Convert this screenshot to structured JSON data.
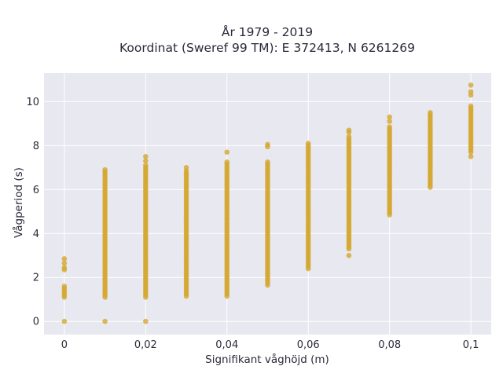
{
  "chart_data": {
    "type": "scatter",
    "title_line1": "År 1979 - 2019",
    "title_line2": "Koordinat (Sweref 99 TM): E 372413, N 6261269",
    "xlabel": "Signifikant våghöjd (m)",
    "ylabel": "Vågperiod (s)",
    "xlim": [
      -0.005,
      0.105
    ],
    "ylim": [
      -0.6,
      11.3
    ],
    "x_ticks": [
      {
        "value": 0,
        "label": "0"
      },
      {
        "value": 0.02,
        "label": "0,02"
      },
      {
        "value": 0.04,
        "label": "0,04"
      },
      {
        "value": 0.06,
        "label": "0,06"
      },
      {
        "value": 0.08,
        "label": "0,08"
      },
      {
        "value": 0.1,
        "label": "0,1"
      }
    ],
    "y_ticks": [
      {
        "value": 0,
        "label": "0"
      },
      {
        "value": 2,
        "label": "2"
      },
      {
        "value": 4,
        "label": "4"
      },
      {
        "value": 6,
        "label": "6"
      },
      {
        "value": 8,
        "label": "8"
      },
      {
        "value": 10,
        "label": "10"
      }
    ],
    "grid": true,
    "marker_color": "#d4a52a",
    "plot_bg": "#e8e8f0",
    "grid_color": "#ffffff",
    "columns": [
      {
        "x": 0,
        "min": 1.1,
        "max": 1.6,
        "outliers": [
          0,
          2.35,
          2.45,
          2.65,
          2.85
        ]
      },
      {
        "x": 0.01,
        "min": 1.1,
        "max": 6.95,
        "outliers": [
          0
        ]
      },
      {
        "x": 0.02,
        "min": 1.1,
        "max": 7.1,
        "outliers": [
          0,
          7.3,
          7.5
        ]
      },
      {
        "x": 0.03,
        "min": 1.15,
        "max": 6.85,
        "outliers": [
          7.0
        ]
      },
      {
        "x": 0.04,
        "min": 1.15,
        "max": 7.25,
        "outliers": [
          7.7
        ]
      },
      {
        "x": 0.05,
        "min": 1.65,
        "max": 7.3,
        "outliers": [
          7.95,
          8.05
        ]
      },
      {
        "x": 0.06,
        "min": 2.4,
        "max": 8.15,
        "outliers": []
      },
      {
        "x": 0.07,
        "min": 3.3,
        "max": 8.45,
        "outliers": [
          3.0,
          8.6,
          8.7
        ]
      },
      {
        "x": 0.08,
        "min": 4.85,
        "max": 8.9,
        "outliers": [
          9.1,
          9.3
        ]
      },
      {
        "x": 0.09,
        "min": 6.1,
        "max": 9.55,
        "outliers": []
      },
      {
        "x": 0.1,
        "min": 7.7,
        "max": 9.8,
        "outliers": [
          7.5,
          10.3,
          10.45,
          10.75
        ]
      }
    ]
  }
}
